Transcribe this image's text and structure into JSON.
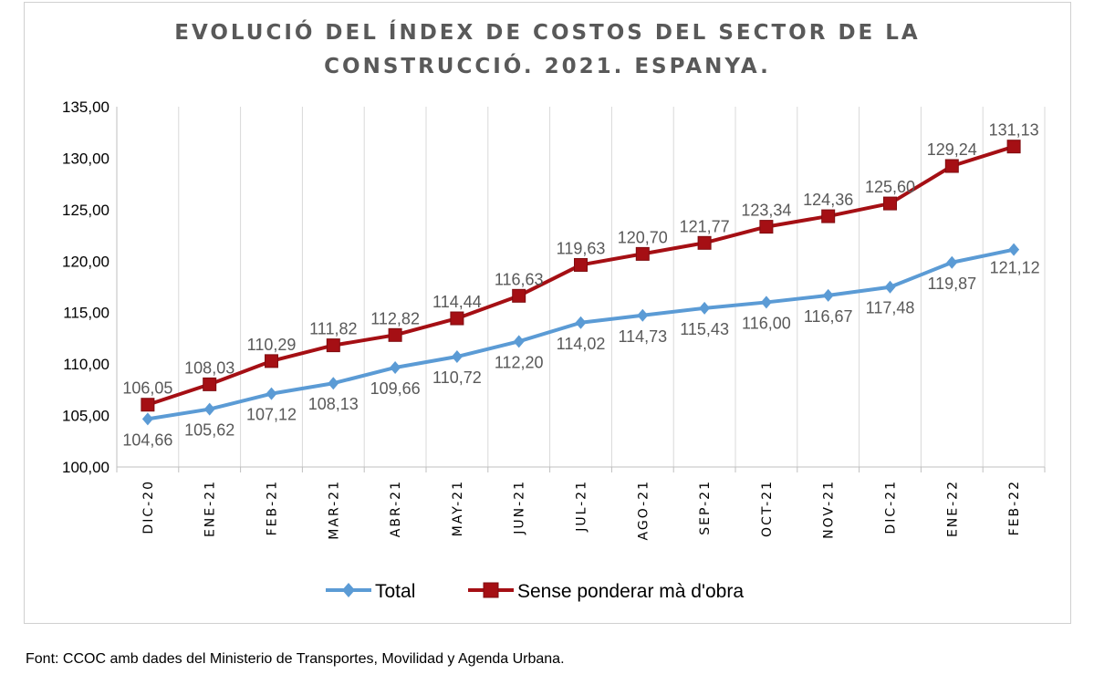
{
  "chart_data": {
    "type": "line",
    "title": [
      "EVOLUCIÓ DEL ÍNDEX DE COSTOS DEL SECTOR DE LA",
      "CONSTRUCCIÓ. 2021. ESPANYA."
    ],
    "categories": [
      "DIC-20",
      "ENE-21",
      "FEB-21",
      "MAR-21",
      "ABR-21",
      "MAY-21",
      "JUN-21",
      "JUL-21",
      "AGO-21",
      "SEP-21",
      "OCT-21",
      "NOV-21",
      "DIC-21",
      "ENE-22",
      "FEB-22"
    ],
    "ylim": [
      100,
      135
    ],
    "yticks": [
      "100,00",
      "105,00",
      "110,00",
      "115,00",
      "120,00",
      "125,00",
      "130,00",
      "135,00"
    ],
    "grid": "vertical",
    "legend_position": "bottom",
    "series": [
      {
        "name": "Total",
        "color": "#5b9bd5",
        "marker": "diamond",
        "label_position": "below",
        "values": [
          104.66,
          105.62,
          107.12,
          108.13,
          109.66,
          110.72,
          112.2,
          114.02,
          114.73,
          115.43,
          116.0,
          116.67,
          117.48,
          119.87,
          121.12
        ],
        "labels": [
          "104,66",
          "105,62",
          "107,12",
          "108,13",
          "109,66",
          "110,72",
          "112,20",
          "114,02",
          "114,73",
          "115,43",
          "116,00",
          "116,67",
          "117,48",
          "119,87",
          "121,12"
        ]
      },
      {
        "name": "Sense ponderar mà d'obra",
        "color": "#a50f14",
        "marker": "square",
        "label_position": "above",
        "values": [
          106.05,
          108.03,
          110.29,
          111.82,
          112.82,
          114.44,
          116.63,
          119.63,
          120.7,
          121.77,
          123.34,
          124.36,
          125.6,
          129.24,
          131.13
        ],
        "labels": [
          "106,05",
          "108,03",
          "110,29",
          "111,82",
          "112,82",
          "114,44",
          "116,63",
          "119,63",
          "120,70",
          "121,77",
          "123,34",
          "124,36",
          "125,60",
          "129,24",
          "131,13"
        ]
      }
    ]
  },
  "source": "Font: CCOC amb dades del Ministerio de Transportes, Movilidad y Agenda Urbana."
}
